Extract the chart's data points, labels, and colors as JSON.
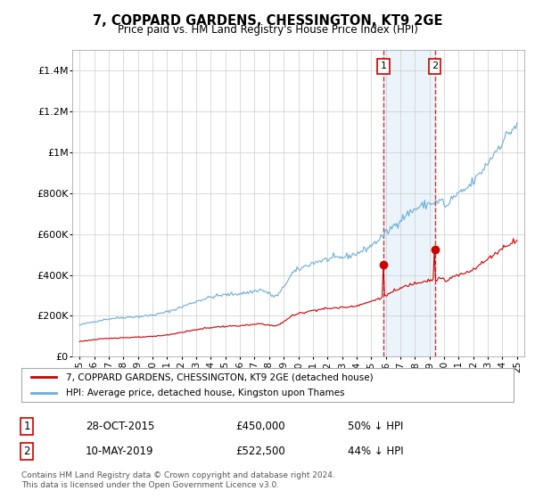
{
  "title": "7, COPPARD GARDENS, CHESSINGTON, KT9 2GE",
  "subtitle": "Price paid vs. HM Land Registry's House Price Index (HPI)",
  "legend_line1": "7, COPPARD GARDENS, CHESSINGTON, KT9 2GE (detached house)",
  "legend_line2": "HPI: Average price, detached house, Kingston upon Thames",
  "footnote": "Contains HM Land Registry data © Crown copyright and database right 2024.\nThis data is licensed under the Open Government Licence v3.0.",
  "sale1_date": "28-OCT-2015",
  "sale1_price": "£450,000",
  "sale1_hpi": "50% ↓ HPI",
  "sale2_date": "10-MAY-2019",
  "sale2_price": "£522,500",
  "sale2_hpi": "44% ↓ HPI",
  "sale1_x": 2015.83,
  "sale1_y": 450000,
  "sale2_x": 2019.36,
  "sale2_y": 522500,
  "hpi_color": "#6baed6",
  "price_color": "#cc0000",
  "vline_color": "#cc0000",
  "shade_color": "#dceef8",
  "ylim": [
    0,
    1500000
  ],
  "xlim": [
    1994.5,
    2025.5
  ],
  "yticks": [
    0,
    200000,
    400000,
    600000,
    800000,
    1000000,
    1200000,
    1400000
  ],
  "ytick_labels": [
    "£0",
    "£200K",
    "£400K",
    "£600K",
    "£800K",
    "£1M",
    "£1.2M",
    "£1.4M"
  ],
  "xtick_years": [
    1995,
    1996,
    1997,
    1998,
    1999,
    2000,
    2001,
    2002,
    2003,
    2004,
    2005,
    2006,
    2007,
    2008,
    2009,
    2010,
    2011,
    2012,
    2013,
    2014,
    2015,
    2016,
    2017,
    2018,
    2019,
    2020,
    2021,
    2022,
    2023,
    2024,
    2025
  ]
}
